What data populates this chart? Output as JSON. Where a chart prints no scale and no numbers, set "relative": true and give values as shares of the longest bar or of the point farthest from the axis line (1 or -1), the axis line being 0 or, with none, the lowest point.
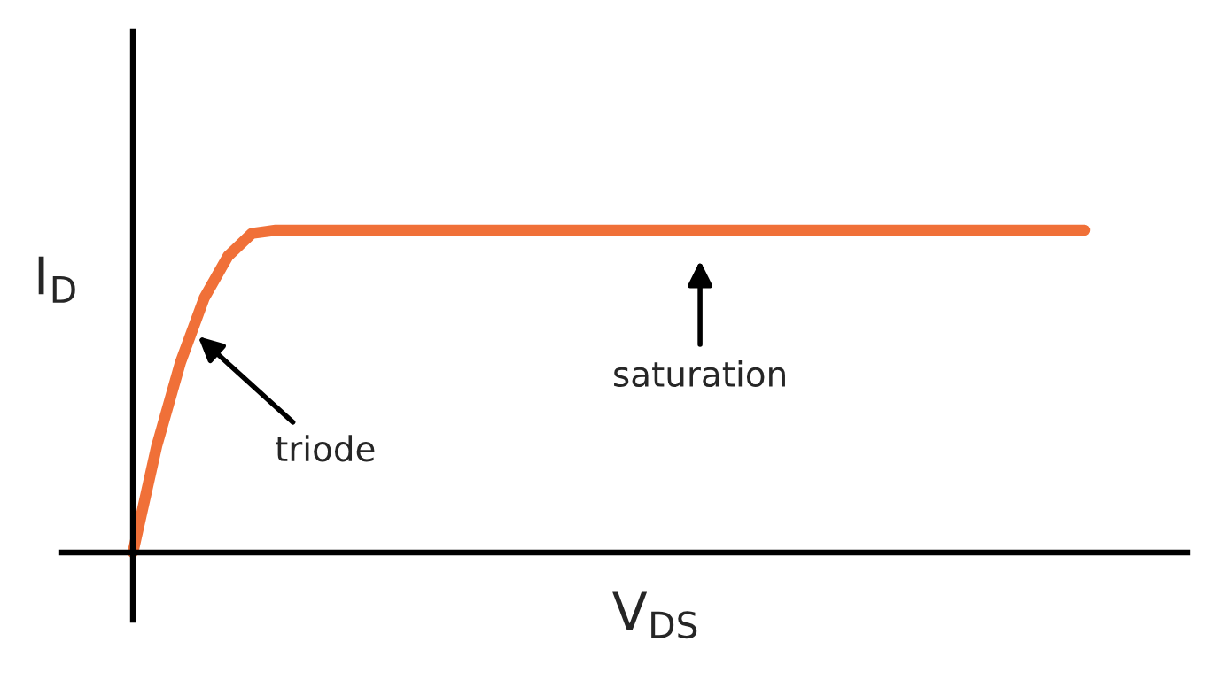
{
  "chart_data": {
    "type": "line",
    "relative": true,
    "xlabel": "V$_{DS}$",
    "ylabel": "I$_{D}$",
    "categories": [
      null,
      null,
      null,
      null,
      null,
      null,
      null,
      null,
      null,
      null,
      null,
      null,
      null,
      null,
      null,
      null,
      null,
      null,
      null,
      null,
      null,
      null,
      null,
      null,
      null,
      null,
      null,
      null,
      null,
      null,
      null,
      null,
      null,
      null,
      null,
      null,
      null,
      null,
      null,
      null,
      null
    ],
    "series": [
      {
        "color": "#f07038",
        "values": [
          0,
          0.33,
          0.59,
          0.79,
          0.92,
          0.99,
          1,
          1,
          1,
          1,
          1,
          1,
          1,
          1,
          1,
          1,
          1,
          1,
          1,
          1,
          1,
          1,
          1,
          1,
          1,
          1,
          1,
          1,
          1,
          1,
          1,
          1,
          1,
          1,
          1,
          1,
          1,
          1,
          1,
          1,
          1
        ]
      }
    ],
    "annotations": [
      "triode",
      "saturation"
    ]
  }
}
